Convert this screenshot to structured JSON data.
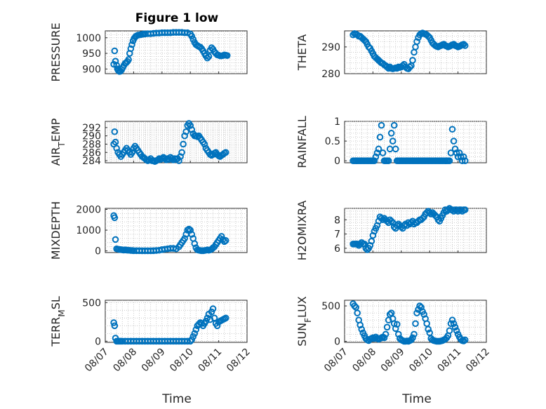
{
  "figure_title": "Figure 1 low",
  "colors": {
    "marker": "#0072BD",
    "axis": "#262626",
    "grid": "#bfbfbf"
  },
  "x_tick_labels": [
    "08/07",
    "08/08",
    "08/09",
    "08/10",
    "08/11",
    "08/12"
  ],
  "chart_data": [
    {
      "type": "scatter",
      "name": "pressure",
      "ylabel": "PRESSURE",
      "ylim": [
        885,
        1022
      ],
      "yticks": [
        900,
        950,
        1000
      ],
      "xlim": [
        0,
        5
      ],
      "grid": true,
      "x": [
        0.3,
        0.33,
        0.36,
        0.4,
        0.43,
        0.46,
        0.5,
        0.54,
        0.58,
        0.62,
        0.66,
        0.7,
        0.74,
        0.78,
        0.82,
        0.86,
        0.9,
        0.94,
        0.98,
        1.02,
        1.06,
        1.1,
        1.15,
        1.2,
        1.25,
        1.3,
        1.35,
        1.4,
        1.5,
        1.6,
        1.7,
        1.8,
        1.9,
        2.0,
        2.1,
        2.2,
        2.3,
        2.4,
        2.5,
        2.6,
        2.7,
        2.8,
        2.9,
        3.0,
        3.05,
        3.1,
        3.15,
        3.2,
        3.25,
        3.3,
        3.35,
        3.4,
        3.45,
        3.5,
        3.55,
        3.6,
        3.65,
        3.7,
        3.75,
        3.8,
        3.85,
        3.9,
        3.95,
        4.0,
        4.05,
        4.1,
        4.15,
        4.2,
        4.25,
        4.3
      ],
      "y": [
        915,
        958,
        925,
        912,
        900,
        895,
        892,
        893,
        898,
        905,
        912,
        918,
        920,
        924,
        930,
        950,
        965,
        978,
        990,
        998,
        1003,
        1006,
        1008,
        1009,
        1010,
        1011,
        1012,
        1012,
        1013,
        1013,
        1014,
        1015,
        1015,
        1016,
        1016,
        1016,
        1016,
        1017,
        1017,
        1017,
        1017,
        1016,
        1016,
        1012,
        1005,
        995,
        985,
        978,
        975,
        972,
        970,
        965,
        958,
        950,
        942,
        935,
        940,
        960,
        968,
        963,
        955,
        950,
        945,
        944,
        942,
        942,
        943,
        945,
        944,
        943
      ]
    },
    {
      "type": "scatter",
      "name": "theta",
      "ylabel": "THETA",
      "ylim": [
        280,
        296
      ],
      "yticks": [
        280,
        290
      ],
      "xlim": [
        0,
        5
      ],
      "grid": true,
      "x": [
        0.3,
        0.35,
        0.4,
        0.45,
        0.5,
        0.55,
        0.6,
        0.65,
        0.7,
        0.75,
        0.8,
        0.85,
        0.9,
        0.95,
        1.0,
        1.05,
        1.1,
        1.15,
        1.2,
        1.25,
        1.3,
        1.35,
        1.4,
        1.45,
        1.5,
        1.55,
        1.6,
        1.65,
        1.7,
        1.75,
        1.8,
        1.85,
        1.9,
        1.95,
        2.0,
        2.05,
        2.1,
        2.15,
        2.2,
        2.25,
        2.3,
        2.35,
        2.4,
        2.45,
        2.5,
        2.55,
        2.6,
        2.65,
        2.7,
        2.75,
        2.8,
        2.85,
        2.9,
        2.95,
        3.0,
        3.05,
        3.1,
        3.15,
        3.2,
        3.25,
        3.3,
        3.35,
        3.4,
        3.45,
        3.5,
        3.55,
        3.6,
        3.65,
        3.7,
        3.75,
        3.8,
        3.85,
        3.9,
        3.95,
        4.0,
        4.05,
        4.1,
        4.15,
        4.2,
        4.25
      ],
      "y": [
        294.5,
        295,
        294.8,
        294.5,
        294,
        294,
        293.5,
        293,
        292.5,
        292,
        291,
        290,
        289.5,
        288.5,
        287.5,
        286.5,
        286,
        285.5,
        285,
        284.5,
        284,
        283.8,
        283.3,
        283,
        282.5,
        282,
        282.5,
        282,
        281.8,
        282,
        282.2,
        282,
        282.5,
        282.3,
        282.5,
        283,
        283.5,
        282.5,
        282,
        281.8,
        282.5,
        283,
        285,
        288,
        290,
        292,
        293.5,
        294.5,
        295,
        295.2,
        295,
        294.8,
        294.5,
        294,
        293.5,
        292.5,
        291.5,
        291,
        290.5,
        290.2,
        290,
        290.3,
        290.5,
        290.8,
        291,
        290.5,
        290.3,
        290,
        290.2,
        290.5,
        290.8,
        291,
        290.5,
        290.3,
        290,
        290.2,
        290.5,
        290.8,
        291,
        290.5
      ]
    },
    {
      "type": "scatter",
      "name": "air_temp",
      "ylabel": "AIR_TEMP",
      "ylim": [
        283.5,
        293.5
      ],
      "yticks": [
        284,
        286,
        288,
        290,
        292
      ],
      "xlim": [
        0,
        5
      ],
      "grid": true,
      "x": [
        0.3,
        0.33,
        0.36,
        0.4,
        0.45,
        0.5,
        0.55,
        0.6,
        0.65,
        0.7,
        0.75,
        0.8,
        0.85,
        0.9,
        0.95,
        1.0,
        1.05,
        1.1,
        1.15,
        1.2,
        1.25,
        1.3,
        1.35,
        1.4,
        1.45,
        1.5,
        1.55,
        1.6,
        1.65,
        1.7,
        1.75,
        1.8,
        1.85,
        1.9,
        1.95,
        2.0,
        2.05,
        2.1,
        2.15,
        2.2,
        2.25,
        2.3,
        2.35,
        2.4,
        2.45,
        2.5,
        2.55,
        2.6,
        2.65,
        2.7,
        2.75,
        2.8,
        2.85,
        2.9,
        2.95,
        3.0,
        3.05,
        3.1,
        3.15,
        3.2,
        3.25,
        3.3,
        3.35,
        3.4,
        3.45,
        3.5,
        3.55,
        3.6,
        3.65,
        3.7,
        3.75,
        3.8,
        3.85,
        3.9,
        3.95,
        4.0,
        4.05,
        4.1,
        4.15,
        4.2,
        4.25
      ],
      "y": [
        288,
        291,
        288.5,
        287,
        286,
        285.5,
        285,
        285.5,
        286,
        286.5,
        287,
        286.5,
        286,
        285.5,
        286,
        287,
        287.5,
        287,
        286.5,
        286,
        285.5,
        285,
        284.8,
        284.5,
        284.2,
        284,
        284.2,
        284.5,
        284,
        284,
        283.8,
        284,
        284.2,
        284.5,
        284.3,
        284.5,
        284.8,
        284.5,
        284.2,
        284.5,
        284.3,
        284.8,
        284.5,
        284.2,
        284.5,
        284.3,
        284.5,
        284,
        285,
        286,
        288,
        290,
        291,
        292.5,
        293,
        292.5,
        291.5,
        290.5,
        290,
        290,
        289.8,
        290,
        289.5,
        289,
        288.5,
        288,
        287,
        286.5,
        286,
        285.5,
        285.3,
        285.5,
        285.8,
        286,
        285.5,
        285.2,
        285,
        285.3,
        285.5,
        285.8,
        286
      ]
    },
    {
      "type": "scatter",
      "name": "rainfall",
      "ylabel": "RAINFALL",
      "ylim": [
        -0.05,
        1.0
      ],
      "yticks": [
        0,
        0.5,
        1
      ],
      "xlim": [
        0,
        5
      ],
      "grid": true,
      "x": [
        0.3,
        0.35,
        0.4,
        0.45,
        0.5,
        0.55,
        0.6,
        0.65,
        0.7,
        0.75,
        0.8,
        0.85,
        0.9,
        0.95,
        1.0,
        1.05,
        1.1,
        1.15,
        1.2,
        1.25,
        1.3,
        1.35,
        1.4,
        1.45,
        1.5,
        1.55,
        1.6,
        1.65,
        1.7,
        1.75,
        1.8,
        1.85,
        1.9,
        1.95,
        2.0,
        2.05,
        2.1,
        2.15,
        2.2,
        2.25,
        2.3,
        2.35,
        2.4,
        2.45,
        2.5,
        2.55,
        2.6,
        2.65,
        2.7,
        2.75,
        2.8,
        2.85,
        2.9,
        2.95,
        3.0,
        3.05,
        3.1,
        3.15,
        3.2,
        3.25,
        3.3,
        3.35,
        3.4,
        3.45,
        3.5,
        3.55,
        3.6,
        3.65,
        3.7,
        3.75,
        3.8,
        3.85,
        3.9,
        3.95,
        4.0,
        4.05,
        4.1,
        4.15,
        4.2,
        4.25
      ],
      "y": [
        0,
        0,
        0,
        0,
        0,
        0,
        0,
        0,
        0,
        0,
        0,
        0,
        0,
        0,
        0,
        0,
        0.1,
        0.2,
        0.3,
        0.6,
        0.9,
        0.2,
        0,
        0,
        0,
        0,
        0.3,
        0.7,
        0.5,
        0.9,
        0.3,
        0,
        0,
        0,
        0,
        0,
        0,
        0,
        0,
        0,
        0,
        0,
        0,
        0,
        0,
        0,
        0,
        0,
        0,
        0,
        0,
        0,
        0,
        0,
        0,
        0,
        0,
        0,
        0,
        0,
        0,
        0,
        0,
        0,
        0,
        0,
        0,
        0,
        0,
        0.2,
        0.8,
        0.5,
        0.3,
        0.2,
        0.1,
        0.2,
        0.1,
        0,
        0.1,
        0
      ]
    },
    {
      "type": "scatter",
      "name": "mixdepth",
      "ylabel": "MIXDEPTH",
      "ylim": [
        -80,
        2050
      ],
      "yticks": [
        0,
        1000,
        2000
      ],
      "xlim": [
        0,
        5
      ],
      "grid": true,
      "x": [
        0.3,
        0.33,
        0.36,
        0.4,
        0.45,
        0.5,
        0.55,
        0.6,
        0.65,
        0.7,
        0.75,
        0.8,
        0.85,
        0.9,
        0.95,
        1.0,
        1.1,
        1.2,
        1.3,
        1.4,
        1.5,
        1.6,
        1.7,
        1.8,
        1.9,
        2.0,
        2.1,
        2.2,
        2.3,
        2.4,
        2.5,
        2.6,
        2.65,
        2.7,
        2.75,
        2.8,
        2.85,
        2.9,
        2.95,
        3.0,
        3.05,
        3.1,
        3.15,
        3.2,
        3.25,
        3.3,
        3.35,
        3.4,
        3.45,
        3.5,
        3.55,
        3.6,
        3.65,
        3.7,
        3.75,
        3.8,
        3.85,
        3.9,
        3.95,
        4.0,
        4.05,
        4.1,
        4.15,
        4.2,
        4.25
      ],
      "y": [
        1700,
        1600,
        550,
        100,
        80,
        70,
        60,
        50,
        40,
        50,
        40,
        30,
        30,
        20,
        20,
        10,
        10,
        10,
        5,
        5,
        5,
        5,
        10,
        20,
        30,
        60,
        80,
        100,
        120,
        120,
        100,
        200,
        300,
        400,
        500,
        600,
        800,
        1000,
        1050,
        1000,
        800,
        600,
        350,
        150,
        50,
        30,
        20,
        10,
        10,
        20,
        30,
        50,
        30,
        50,
        80,
        150,
        200,
        300,
        400,
        500,
        600,
        700,
        550,
        450,
        500
      ]
    },
    {
      "type": "scatter",
      "name": "h2omixra",
      "ylabel": "H2OMIXRA",
      "ylim": [
        5.7,
        8.8
      ],
      "yticks": [
        6,
        7,
        8
      ],
      "xlim": [
        0,
        5
      ],
      "grid": true,
      "x": [
        0.3,
        0.35,
        0.4,
        0.45,
        0.5,
        0.55,
        0.6,
        0.65,
        0.7,
        0.75,
        0.8,
        0.85,
        0.9,
        0.95,
        1.0,
        1.05,
        1.1,
        1.15,
        1.2,
        1.25,
        1.3,
        1.35,
        1.4,
        1.45,
        1.5,
        1.55,
        1.6,
        1.65,
        1.7,
        1.75,
        1.8,
        1.85,
        1.9,
        1.95,
        2.0,
        2.05,
        2.1,
        2.15,
        2.2,
        2.25,
        2.3,
        2.35,
        2.4,
        2.45,
        2.5,
        2.55,
        2.6,
        2.65,
        2.7,
        2.75,
        2.8,
        2.85,
        2.9,
        2.95,
        3.0,
        3.05,
        3.1,
        3.15,
        3.2,
        3.25,
        3.3,
        3.35,
        3.4,
        3.45,
        3.5,
        3.55,
        3.6,
        3.65,
        3.7,
        3.75,
        3.8,
        3.85,
        3.9,
        3.95,
        4.0,
        4.05,
        4.1,
        4.15,
        4.2,
        4.25
      ],
      "y": [
        6.3,
        6.3,
        6.3,
        6.3,
        6.2,
        6.3,
        6.4,
        6.3,
        6.3,
        6.0,
        5.9,
        6.0,
        6.2,
        6.5,
        6.9,
        7.2,
        7.4,
        7.6,
        7.9,
        8.2,
        8.1,
        8.0,
        8.1,
        8.0,
        7.9,
        7.8,
        8.0,
        7.9,
        7.8,
        7.5,
        7.4,
        7.6,
        7.7,
        7.6,
        7.5,
        7.4,
        7.6,
        7.7,
        7.6,
        7.8,
        7.7,
        7.8,
        7.9,
        7.7,
        7.8,
        7.8,
        7.9,
        8.0,
        8.0,
        8.1,
        8.2,
        8.4,
        8.5,
        8.6,
        8.5,
        8.4,
        8.5,
        8.4,
        8.3,
        8.2,
        8.0,
        7.9,
        8.1,
        8.3,
        8.5,
        8.7,
        8.6,
        8.7,
        8.8,
        8.7,
        8.7,
        8.6,
        8.7,
        8.7,
        8.6,
        8.7,
        8.7,
        8.6,
        8.7,
        8.7
      ]
    },
    {
      "type": "scatter",
      "name": "terr_msl",
      "ylabel": "TERR_MSL",
      "ylim": [
        -15,
        530
      ],
      "yticks": [
        0,
        500
      ],
      "xlim": [
        0,
        5
      ],
      "grid": true,
      "x": [
        0.3,
        0.33,
        0.36,
        0.4,
        0.45,
        0.5,
        0.55,
        0.6,
        0.7,
        0.8,
        0.9,
        1.0,
        1.1,
        1.2,
        1.3,
        1.4,
        1.5,
        1.6,
        1.7,
        1.8,
        1.9,
        2.0,
        2.1,
        2.2,
        2.3,
        2.4,
        2.5,
        2.6,
        2.7,
        2.8,
        2.9,
        3.0,
        3.05,
        3.1,
        3.15,
        3.2,
        3.25,
        3.3,
        3.35,
        3.4,
        3.45,
        3.5,
        3.55,
        3.6,
        3.65,
        3.7,
        3.75,
        3.8,
        3.85,
        3.9,
        3.95,
        4.0,
        4.05,
        4.1,
        4.15,
        4.2,
        4.25
      ],
      "y": [
        240,
        200,
        40,
        0,
        0,
        0,
        0,
        0,
        0,
        0,
        0,
        0,
        0,
        0,
        0,
        0,
        0,
        0,
        0,
        0,
        0,
        0,
        0,
        0,
        0,
        0,
        0,
        0,
        0,
        0,
        0,
        0,
        20,
        60,
        100,
        150,
        200,
        220,
        240,
        230,
        200,
        230,
        260,
        300,
        350,
        280,
        380,
        420,
        300,
        230,
        200,
        250,
        260,
        270,
        280,
        290,
        300
      ]
    },
    {
      "type": "scatter",
      "name": "sun_flux",
      "ylabel": "SUN_FLUX",
      "ylim": [
        -15,
        580
      ],
      "yticks": [
        0,
        500
      ],
      "xlim": [
        0,
        5
      ],
      "grid": true,
      "x": [
        0.3,
        0.35,
        0.4,
        0.45,
        0.5,
        0.55,
        0.6,
        0.65,
        0.7,
        0.75,
        0.8,
        0.85,
        0.9,
        0.95,
        1.0,
        1.05,
        1.1,
        1.15,
        1.2,
        1.25,
        1.3,
        1.35,
        1.4,
        1.45,
        1.5,
        1.55,
        1.6,
        1.65,
        1.7,
        1.75,
        1.8,
        1.85,
        1.9,
        1.95,
        2.0,
        2.05,
        2.1,
        2.15,
        2.2,
        2.25,
        2.3,
        2.35,
        2.4,
        2.45,
        2.5,
        2.55,
        2.6,
        2.65,
        2.7,
        2.75,
        2.8,
        2.85,
        2.9,
        2.95,
        3.0,
        3.05,
        3.1,
        3.15,
        3.2,
        3.25,
        3.3,
        3.35,
        3.4,
        3.45,
        3.5,
        3.55,
        3.6,
        3.65,
        3.7,
        3.75,
        3.8,
        3.85,
        3.9,
        3.95,
        4.0,
        4.05,
        4.1,
        4.15,
        4.2,
        4.25
      ],
      "y": [
        530,
        500,
        480,
        400,
        300,
        230,
        170,
        120,
        80,
        40,
        20,
        10,
        30,
        40,
        50,
        40,
        60,
        40,
        30,
        40,
        50,
        60,
        50,
        100,
        200,
        300,
        380,
        400,
        320,
        250,
        180,
        240,
        100,
        40,
        20,
        10,
        0,
        0,
        5,
        0,
        10,
        20,
        50,
        100,
        250,
        400,
        450,
        500,
        480,
        420,
        380,
        320,
        250,
        170,
        120,
        40,
        20,
        10,
        5,
        0,
        0,
        0,
        5,
        10,
        20,
        30,
        50,
        80,
        150,
        250,
        300,
        250,
        200,
        150,
        100,
        60,
        30,
        10,
        5,
        20
      ]
    }
  ],
  "xlabel": "Time"
}
